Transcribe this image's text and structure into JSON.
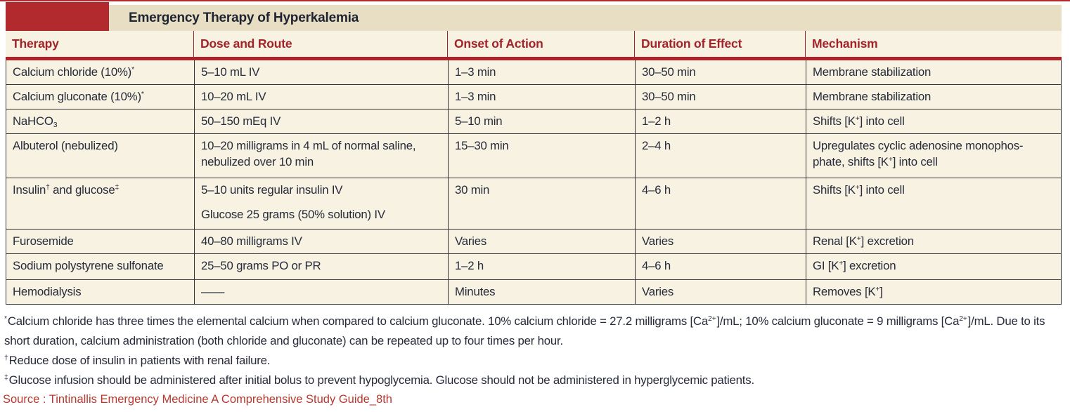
{
  "title": "Emergency Therapy of Hyperkalemia",
  "colors": {
    "accent_red_block": "#B32A2E",
    "header_rule_red": "#B0222A",
    "header_text_red": "#A4232B",
    "title_bar_tan": "#E8DEC4",
    "row_cream": "#F7F2E2",
    "body_text": "#272B3A",
    "border_dark": "#333336",
    "source_text_red": "#B7392E"
  },
  "table": {
    "columns": [
      "Therapy",
      "Dose and Route",
      "Onset of Action",
      "Duration of Effect",
      "Mechanism"
    ],
    "rows": [
      {
        "cells": [
          [
            [
              [
                "t",
                "Calcium chloride (10%)"
              ],
              [
                "sup",
                "*"
              ]
            ]
          ],
          [
            [
              [
                "t",
                "5–10 mL IV"
              ]
            ]
          ],
          [
            [
              [
                "t",
                "1–3 min"
              ]
            ]
          ],
          [
            [
              [
                "t",
                "30–50 min"
              ]
            ]
          ],
          [
            [
              [
                "t",
                "Membrane stabilization"
              ]
            ]
          ]
        ]
      },
      {
        "cells": [
          [
            [
              [
                "t",
                "Calcium gluconate (10%)"
              ],
              [
                "sup",
                "*"
              ]
            ]
          ],
          [
            [
              [
                "t",
                "10–20 mL IV"
              ]
            ]
          ],
          [
            [
              [
                "t",
                "1–3 min"
              ]
            ]
          ],
          [
            [
              [
                "t",
                "30–50 min"
              ]
            ]
          ],
          [
            [
              [
                "t",
                "Membrane stabilization"
              ]
            ]
          ]
        ]
      },
      {
        "cells": [
          [
            [
              [
                "t",
                "NaHCO"
              ],
              [
                "sub",
                "3"
              ]
            ]
          ],
          [
            [
              [
                "t",
                "50–150 mEq IV"
              ]
            ]
          ],
          [
            [
              [
                "t",
                "5–10 min"
              ]
            ]
          ],
          [
            [
              [
                "t",
                "1–2 h"
              ]
            ]
          ],
          [
            [
              [
                "t",
                "Shifts [K"
              ],
              [
                "sup",
                "+"
              ],
              [
                "t",
                "] into cell"
              ]
            ]
          ]
        ]
      },
      {
        "cells": [
          [
            [
              [
                "t",
                "Albuterol (nebulized)"
              ]
            ]
          ],
          [
            [
              [
                "t",
                "10–20 milligrams in 4 mL of normal saline,"
              ],
              [
                "br"
              ],
              [
                "t",
                "nebulized over 10 min"
              ]
            ]
          ],
          [
            [
              [
                "t",
                "15–30 min"
              ]
            ]
          ],
          [
            [
              [
                "t",
                "2–4 h"
              ]
            ]
          ],
          [
            [
              [
                "t",
                "Upregulates cyclic adenosine monophos-"
              ],
              [
                "br"
              ],
              [
                "t",
                "phate, shifts [K"
              ],
              [
                "sup",
                "+"
              ],
              [
                "t",
                "] into cell"
              ]
            ]
          ]
        ]
      },
      {
        "cells": [
          [
            [
              [
                "t",
                "Insulin"
              ],
              [
                "sup",
                "†"
              ],
              [
                "t",
                " and glucose"
              ],
              [
                "sup",
                "‡"
              ]
            ]
          ],
          [
            [
              [
                "t",
                "5–10 units regular insulin IV"
              ]
            ],
            [
              [
                "t",
                "Glucose 25 grams (50% solution) IV"
              ]
            ]
          ],
          [
            [
              [
                "t",
                "30 min"
              ]
            ]
          ],
          [
            [
              [
                "t",
                "4–6 h"
              ]
            ]
          ],
          [
            [
              [
                "t",
                "Shifts [K"
              ],
              [
                "sup",
                "+"
              ],
              [
                "t",
                "] into cell"
              ]
            ]
          ]
        ]
      },
      {
        "cells": [
          [
            [
              [
                "t",
                "Furosemide"
              ]
            ]
          ],
          [
            [
              [
                "t",
                "40–80 milligrams IV"
              ]
            ]
          ],
          [
            [
              [
                "t",
                "Varies"
              ]
            ]
          ],
          [
            [
              [
                "t",
                "Varies"
              ]
            ]
          ],
          [
            [
              [
                "t",
                "Renal [K"
              ],
              [
                "sup",
                "+"
              ],
              [
                "t",
                "] excretion"
              ]
            ]
          ]
        ]
      },
      {
        "cells": [
          [
            [
              [
                "t",
                "Sodium polystyrene sulfonate"
              ]
            ]
          ],
          [
            [
              [
                "t",
                "25–50 grams PO or PR"
              ]
            ]
          ],
          [
            [
              [
                "t",
                "1–2 h"
              ]
            ]
          ],
          [
            [
              [
                "t",
                "4–6 h"
              ]
            ]
          ],
          [
            [
              [
                "t",
                "GI [K"
              ],
              [
                "sup",
                "+"
              ],
              [
                "t",
                "] excretion"
              ]
            ]
          ]
        ]
      },
      {
        "cells": [
          [
            [
              [
                "t",
                "Hemodialysis"
              ]
            ]
          ],
          [
            [
              [
                "t",
                "——"
              ]
            ]
          ],
          [
            [
              [
                "t",
                "Minutes"
              ]
            ]
          ],
          [
            [
              [
                "t",
                "Varies"
              ]
            ]
          ],
          [
            [
              [
                "t",
                "Removes [K"
              ],
              [
                "sup",
                "+"
              ],
              [
                "t",
                "]"
              ]
            ]
          ]
        ]
      }
    ]
  },
  "footnotes": [
    {
      "marker": "*",
      "segments": [
        [
          "t",
          "Calcium chloride has three times the elemental calcium when compared to calcium gluconate. 10% calcium chloride = 27.2 milligrams [Ca"
        ],
        [
          "sup",
          "2+"
        ],
        [
          "t",
          "]/mL; 10% calcium gluconate = 9 milligrams [Ca"
        ],
        [
          "sup",
          "2+"
        ],
        [
          "t",
          "]/mL. Due to its short duration, calcium administration (both chloride and gluconate) can be repeated up to four times per hour."
        ]
      ]
    },
    {
      "marker": "†",
      "segments": [
        [
          "t",
          "Reduce dose of insulin in patients with renal failure."
        ]
      ]
    },
    {
      "marker": "‡",
      "segments": [
        [
          "t",
          "Glucose infusion should be administered after initial bolus to prevent hypoglycemia. Glucose should not be administered in hyperglycemic patients."
        ]
      ]
    }
  ],
  "source": "Source : Tintinallis Emergency Medicine A Comprehensive Study Guide_8th"
}
